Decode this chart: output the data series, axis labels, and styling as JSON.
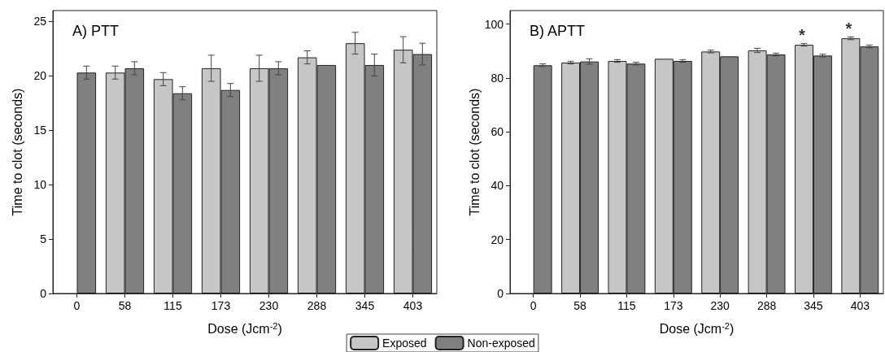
{
  "chart_data": [
    {
      "type": "bar",
      "annotations": [
        "A) PTT"
      ],
      "xlabel": "Dose (Jcm$^{-2}$)",
      "ylabel": "Time to clot (seconds)",
      "categories": [
        "0",
        "58",
        "115",
        "173",
        "230",
        "288",
        "345",
        "403"
      ],
      "ylim": [
        0,
        26
      ],
      "yticks": [
        0,
        5,
        10,
        15,
        20,
        25
      ],
      "grid": false,
      "legend": "bottom",
      "series": [
        {
          "name": "Exposed",
          "color": "#c6c6c6",
          "values": [
            null,
            20.3,
            19.7,
            20.7,
            20.7,
            21.7,
            23.0,
            22.4
          ],
          "errors": [
            null,
            0.6,
            0.6,
            1.2,
            1.2,
            0.6,
            1.0,
            1.2
          ]
        },
        {
          "name": "Non-exposed",
          "color": "#808080",
          "values": [
            20.3,
            20.7,
            18.4,
            18.7,
            20.7,
            21.0,
            21.0,
            22.0
          ],
          "errors": [
            0.6,
            0.6,
            0.6,
            0.6,
            0.6,
            null,
            1.0,
            1.0
          ]
        }
      ]
    },
    {
      "type": "bar",
      "annotations": [
        "B) APTT",
        {
          "text": "*",
          "x": "345",
          "y": 92.3
        },
        {
          "text": "*",
          "x": "403",
          "y": 94.7
        }
      ],
      "xlabel": "Dose (Jcm$^{-2}$)",
      "ylabel": "Time to clot (seconds)",
      "categories": [
        "0",
        "58",
        "115",
        "173",
        "230",
        "288",
        "345",
        "403"
      ],
      "ylim": [
        0,
        105
      ],
      "yticks": [
        0,
        20,
        40,
        60,
        80,
        100
      ],
      "grid": false,
      "legend": "bottom",
      "series": [
        {
          "name": "Exposed",
          "color": "#c6c6c6",
          "values": [
            null,
            85.7,
            86.3,
            87.1,
            89.8,
            90.2,
            92.3,
            94.7
          ],
          "errors": [
            null,
            0.5,
            0.5,
            null,
            0.5,
            0.8,
            0.5,
            0.5
          ]
        },
        {
          "name": "Non-exposed",
          "color": "#808080",
          "values": [
            84.7,
            86.1,
            85.3,
            86.3,
            88.0,
            88.7,
            88.3,
            91.7
          ],
          "errors": [
            0.5,
            1.0,
            0.5,
            0.5,
            null,
            0.5,
            0.5,
            0.5
          ]
        }
      ]
    }
  ]
}
